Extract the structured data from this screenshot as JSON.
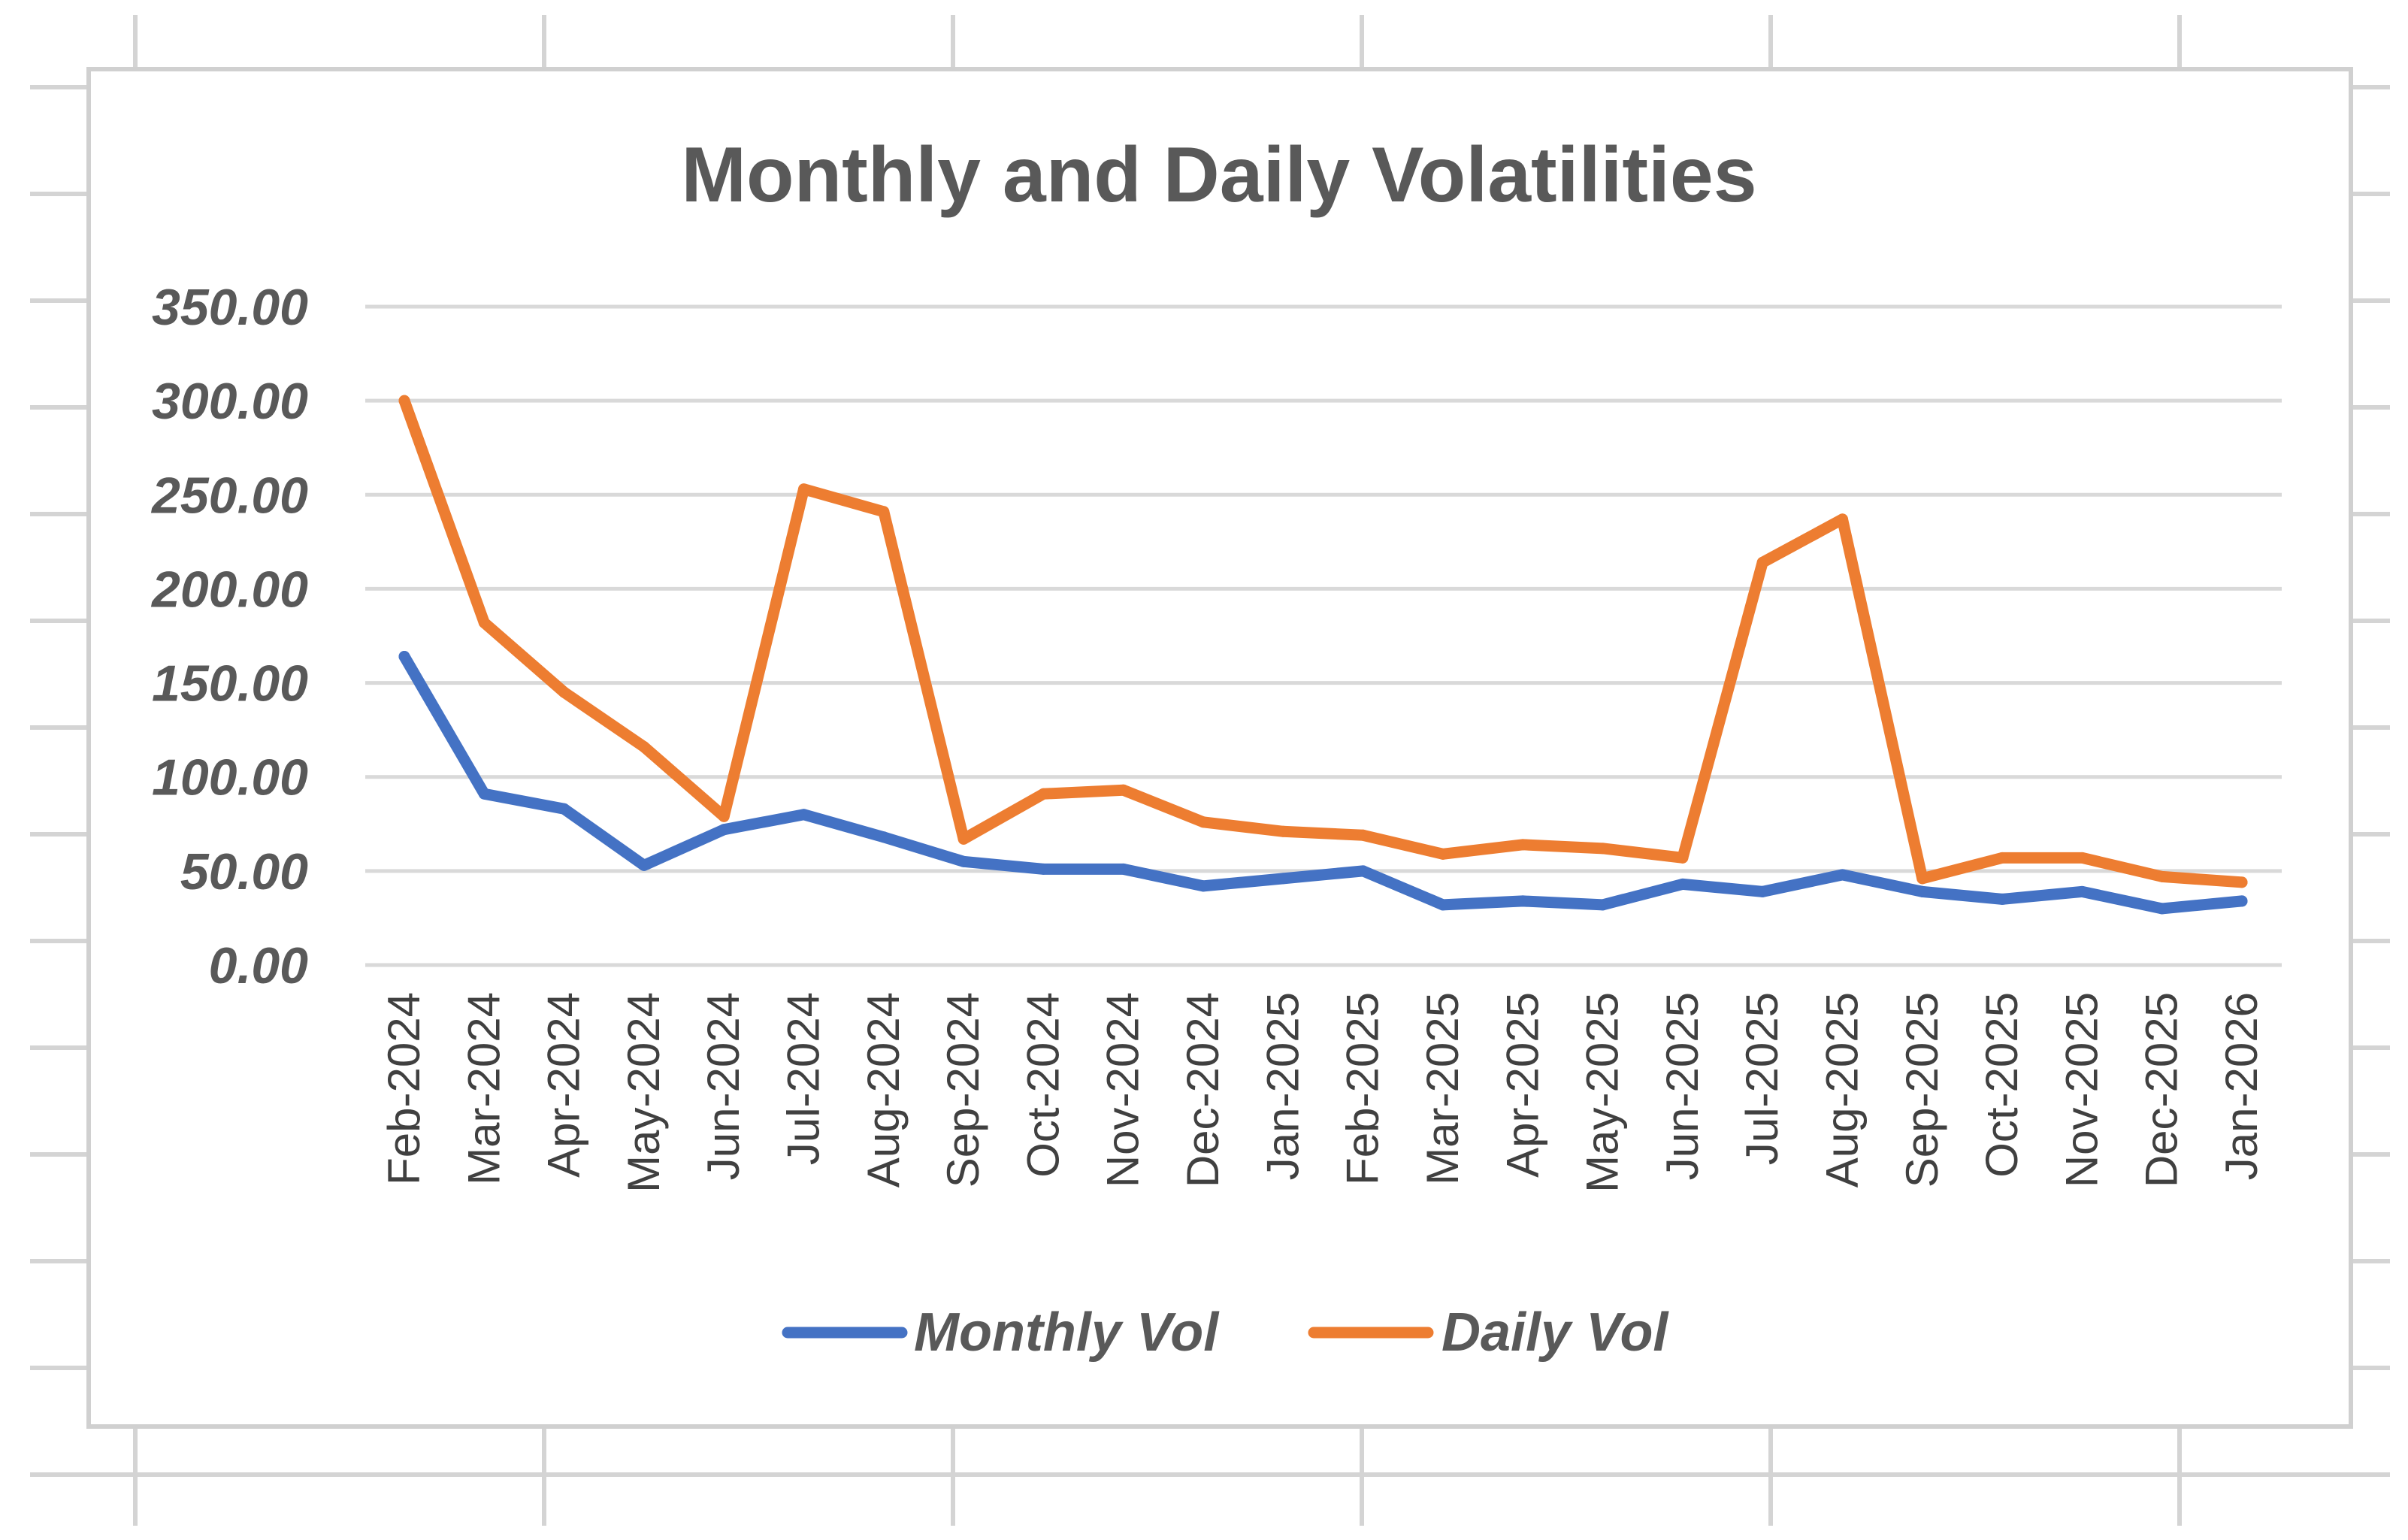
{
  "chart_data": {
    "type": "line",
    "title": "Monthly and Daily Volatilities",
    "xlabel": "",
    "ylabel": "",
    "ylim": [
      0,
      350
    ],
    "yticks": [
      "0.00",
      "50.00",
      "100.00",
      "150.00",
      "200.00",
      "250.00",
      "300.00",
      "350.00"
    ],
    "ytick_values": [
      0,
      50,
      100,
      150,
      200,
      250,
      300,
      350
    ],
    "grid": true,
    "legend_position": "bottom",
    "categories": [
      "Feb-2024",
      "Mar-2024",
      "Apr-2024",
      "May-2024",
      "Jun-2024",
      "Jul-2024",
      "Aug-2024",
      "Sep-2024",
      "Oct-2024",
      "Nov-2024",
      "Dec-2024",
      "Jan-2025",
      "Feb-2025",
      "Mar-2025",
      "Apr-2025",
      "May-2025",
      "Jun-2025",
      "Jul-2025",
      "Aug-2025",
      "Sep-2025",
      "Oct-2025",
      "Nov-2025",
      "Dec-2025",
      "Jan-2026"
    ],
    "series": [
      {
        "name": "Monthly Vol",
        "color": "#4472c4",
        "values": [
          164,
          91,
          83,
          53,
          72,
          80,
          68,
          55,
          51,
          51,
          42,
          46,
          50,
          32,
          34,
          32,
          43,
          39,
          48,
          39,
          35,
          39,
          30,
          34
        ]
      },
      {
        "name": "Daily Vol",
        "color": "#ed7d31",
        "values": [
          300,
          182,
          145,
          116,
          79,
          253,
          241,
          67,
          91,
          93,
          76,
          71,
          69,
          59,
          64,
          62,
          57,
          214,
          237,
          46,
          57,
          57,
          47,
          44
        ]
      }
    ]
  }
}
